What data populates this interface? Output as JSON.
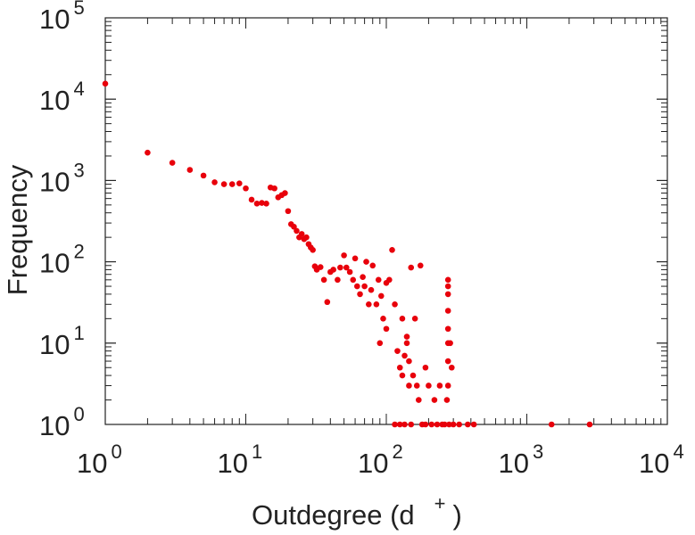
{
  "chart_data": {
    "type": "scatter",
    "xlabel": "Outdegree (d",
    "xlabel_superscript": "+",
    "xlabel_close": ")",
    "ylabel": "Frequency",
    "x_scale": "log",
    "y_scale": "log",
    "xlim": [
      1,
      10000
    ],
    "ylim": [
      1,
      100000
    ],
    "grid": false,
    "marker_color": "#e8000b",
    "x_ticks": [
      {
        "base": "10",
        "exp": "0"
      },
      {
        "base": "10",
        "exp": "1"
      },
      {
        "base": "10",
        "exp": "2"
      },
      {
        "base": "10",
        "exp": "3"
      },
      {
        "base": "10",
        "exp": "4"
      }
    ],
    "y_ticks": [
      {
        "base": "10",
        "exp": "0"
      },
      {
        "base": "10",
        "exp": "1"
      },
      {
        "base": "10",
        "exp": "2"
      },
      {
        "base": "10",
        "exp": "3"
      },
      {
        "base": "10",
        "exp": "4"
      },
      {
        "base": "10",
        "exp": "5"
      }
    ],
    "points": [
      [
        1,
        15500
      ],
      [
        2,
        2200
      ],
      [
        3,
        1650
      ],
      [
        4,
        1350
      ],
      [
        5,
        1150
      ],
      [
        6,
        950
      ],
      [
        7,
        900
      ],
      [
        8,
        900
      ],
      [
        9,
        920
      ],
      [
        10,
        800
      ],
      [
        11,
        580
      ],
      [
        12,
        520
      ],
      [
        13,
        530
      ],
      [
        14,
        520
      ],
      [
        15,
        820
      ],
      [
        16,
        800
      ],
      [
        17,
        620
      ],
      [
        18,
        660
      ],
      [
        19,
        700
      ],
      [
        20,
        420
      ],
      [
        21,
        290
      ],
      [
        22,
        270
      ],
      [
        23,
        240
      ],
      [
        24,
        200
      ],
      [
        25,
        220
      ],
      [
        26,
        190
      ],
      [
        27,
        200
      ],
      [
        28,
        165
      ],
      [
        29,
        150
      ],
      [
        30,
        140
      ],
      [
        31,
        88
      ],
      [
        32,
        80
      ],
      [
        34,
        86
      ],
      [
        36,
        60
      ],
      [
        38,
        32
      ],
      [
        40,
        75
      ],
      [
        42,
        80
      ],
      [
        45,
        60
      ],
      [
        47,
        85
      ],
      [
        50,
        120
      ],
      [
        52,
        85
      ],
      [
        55,
        75
      ],
      [
        58,
        60
      ],
      [
        60,
        110
      ],
      [
        62,
        50
      ],
      [
        65,
        40
      ],
      [
        68,
        65
      ],
      [
        70,
        50
      ],
      [
        72,
        100
      ],
      [
        75,
        30
      ],
      [
        78,
        45
      ],
      [
        80,
        90
      ],
      [
        85,
        30
      ],
      [
        88,
        60
      ],
      [
        90,
        10
      ],
      [
        92,
        38
      ],
      [
        95,
        20
      ],
      [
        100,
        15
      ],
      [
        100,
        55
      ],
      [
        105,
        60
      ],
      [
        110,
        140
      ],
      [
        115,
        30
      ],
      [
        120,
        8
      ],
      [
        125,
        5
      ],
      [
        130,
        4
      ],
      [
        135,
        7
      ],
      [
        140,
        10
      ],
      [
        145,
        6
      ],
      [
        150,
        85
      ],
      [
        155,
        4
      ],
      [
        160,
        20
      ],
      [
        165,
        3
      ],
      [
        170,
        2
      ],
      [
        175,
        90
      ],
      [
        180,
        1
      ],
      [
        190,
        5
      ],
      [
        200,
        3
      ],
      [
        210,
        1
      ],
      [
        220,
        2
      ],
      [
        230,
        1
      ],
      [
        240,
        3
      ],
      [
        260,
        1
      ],
      [
        270,
        2
      ],
      [
        275,
        60
      ],
      [
        275,
        50
      ],
      [
        275,
        40
      ],
      [
        275,
        25
      ],
      [
        275,
        15
      ],
      [
        275,
        10
      ],
      [
        275,
        6
      ],
      [
        275,
        3
      ],
      [
        280,
        1
      ],
      [
        300,
        1
      ],
      [
        330,
        1
      ],
      [
        380,
        1
      ],
      [
        420,
        1
      ],
      [
        1500,
        1
      ],
      [
        2800,
        1
      ],
      [
        115,
        1
      ],
      [
        125,
        1
      ],
      [
        135,
        1
      ],
      [
        150,
        1
      ],
      [
        190,
        1
      ],
      [
        250,
        1
      ],
      [
        285,
        10
      ],
      [
        292,
        5
      ],
      [
        130,
        20
      ],
      [
        140,
        12
      ],
      [
        145,
        3
      ]
    ]
  }
}
